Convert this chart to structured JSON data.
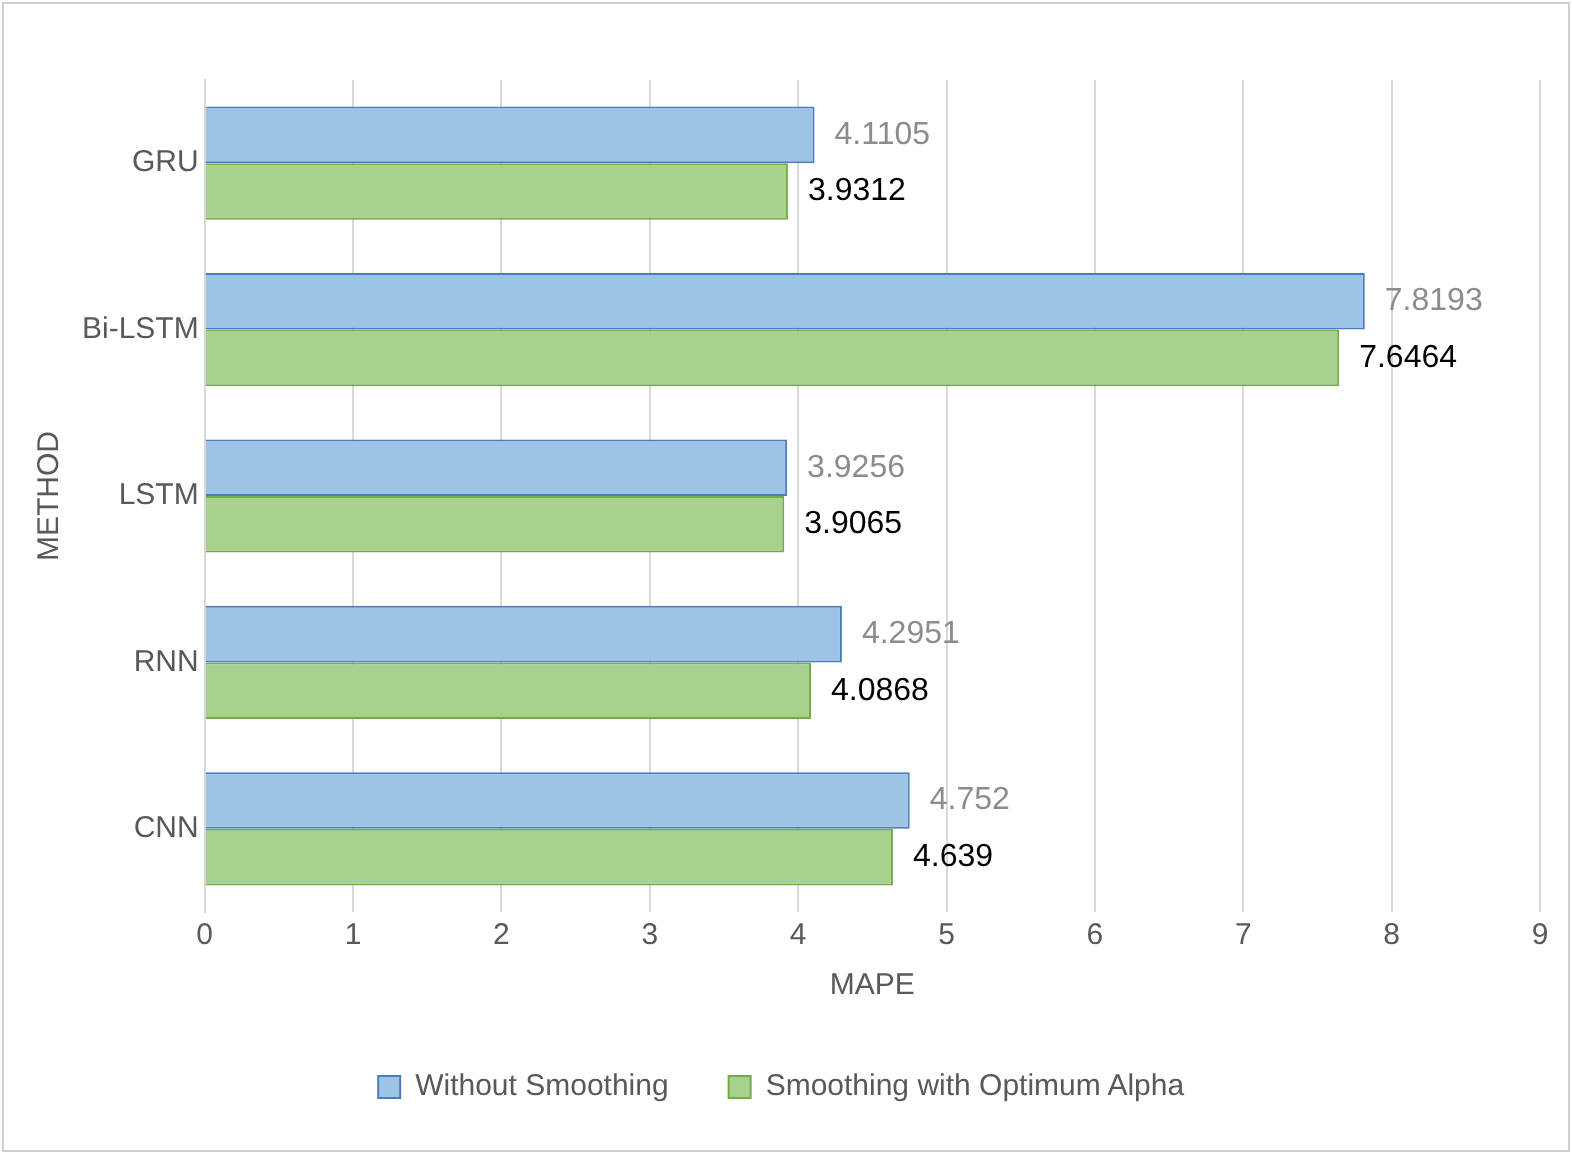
{
  "chart_data": {
    "type": "bar",
    "orientation": "horizontal",
    "xlabel": "MAPE",
    "ylabel": "METHOD",
    "categories": [
      "GRU",
      "Bi-LSTM",
      "LSTM",
      "RNN",
      "CNN"
    ],
    "series": [
      {
        "name": "Without Smoothing",
        "color": "#9dc3e6",
        "values": [
          4.1105,
          7.8193,
          3.9256,
          4.2951,
          4.752
        ]
      },
      {
        "name": "Smoothing with Optimum Alpha",
        "color": "#a9d18e",
        "values": [
          3.9312,
          7.6464,
          3.9065,
          4.0868,
          4.639
        ]
      }
    ],
    "xlim": [
      0,
      9
    ],
    "xticks": [
      0,
      1,
      2,
      3,
      4,
      5,
      6,
      7,
      8,
      9
    ],
    "grid": "x",
    "legend": "bottom",
    "data_labels": true
  }
}
